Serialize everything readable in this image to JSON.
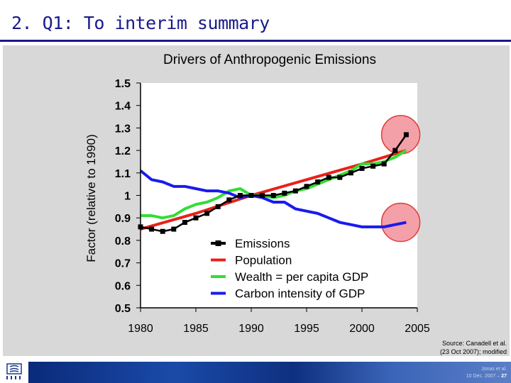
{
  "slide": {
    "title": "2. Q1: To interim summary",
    "source_line1": "Source: Canadell et al.",
    "source_line2": "(23 Oct 2007); modified",
    "credit_line1": "Jonas et al.",
    "credit_date": "10 Dec. 2007 – ",
    "credit_page": "27"
  },
  "colors": {
    "title": "#1a1a8c",
    "emissions": "#000000",
    "population": "#e8211a",
    "wealth": "#33dd33",
    "carbon": "#1a1aee",
    "highlight_circle": "#f4a0a8"
  },
  "icons": {
    "logo": "organization-logo-icon"
  },
  "chart_data": {
    "type": "line",
    "title": "Drivers of Anthropogenic Emissions",
    "xlabel": "",
    "ylabel": "Factor (relative to 1990)",
    "xlim": [
      1980,
      2005
    ],
    "ylim": [
      0.5,
      1.5
    ],
    "x_ticks": [
      "1980",
      "1985",
      "1990",
      "1995",
      "2000",
      "2005"
    ],
    "y_ticks": [
      "0.5",
      "0.6",
      "0.7",
      "0.8",
      "0.9",
      "1",
      "1.1",
      "1.2",
      "1.3",
      "1.4",
      "1.5"
    ],
    "legend_position": "lower-right",
    "highlights": [
      {
        "x": 2003.5,
        "y": 1.27
      },
      {
        "x": 2003.5,
        "y": 0.88
      }
    ],
    "series": [
      {
        "name": "Emissions",
        "color": "#000000",
        "markers": true,
        "x": [
          1980,
          1981,
          1982,
          1983,
          1984,
          1985,
          1986,
          1987,
          1988,
          1989,
          1990,
          1991,
          1992,
          1993,
          1994,
          1995,
          1996,
          1997,
          1998,
          1999,
          2000,
          2001,
          2002,
          2003,
          2004
        ],
        "y": [
          0.86,
          0.85,
          0.84,
          0.85,
          0.88,
          0.9,
          0.92,
          0.95,
          0.98,
          1.0,
          1.0,
          1.0,
          1.0,
          1.01,
          1.02,
          1.04,
          1.06,
          1.08,
          1.08,
          1.1,
          1.12,
          1.13,
          1.14,
          1.2,
          1.27
        ]
      },
      {
        "name": "Population",
        "color": "#e8211a",
        "markers": false,
        "x": [
          1980,
          1985,
          1990,
          1995,
          2000,
          2004
        ],
        "y": [
          0.85,
          0.92,
          1.0,
          1.07,
          1.14,
          1.2
        ]
      },
      {
        "name": "Wealth = per capita GDP",
        "color": "#33dd33",
        "markers": false,
        "x": [
          1980,
          1981,
          1982,
          1983,
          1984,
          1985,
          1986,
          1987,
          1988,
          1989,
          1990,
          1991,
          1992,
          1993,
          1994,
          1995,
          1996,
          1997,
          1998,
          1999,
          2000,
          2001,
          2002,
          2003,
          2004
        ],
        "y": [
          0.91,
          0.91,
          0.9,
          0.91,
          0.94,
          0.96,
          0.97,
          0.99,
          1.02,
          1.03,
          1.0,
          1.0,
          0.99,
          1.0,
          1.02,
          1.03,
          1.05,
          1.07,
          1.09,
          1.11,
          1.14,
          1.14,
          1.15,
          1.17,
          1.2
        ]
      },
      {
        "name": "Carbon intensity of GDP",
        "color": "#1a1aee",
        "markers": false,
        "x": [
          1980,
          1981,
          1982,
          1983,
          1984,
          1985,
          1986,
          1987,
          1988,
          1989,
          1990,
          1991,
          1992,
          1993,
          1994,
          1995,
          1996,
          1997,
          1998,
          1999,
          2000,
          2001,
          2002,
          2003,
          2004
        ],
        "y": [
          1.11,
          1.07,
          1.06,
          1.04,
          1.04,
          1.03,
          1.02,
          1.02,
          1.01,
          0.99,
          1.0,
          0.99,
          0.97,
          0.97,
          0.94,
          0.93,
          0.92,
          0.9,
          0.88,
          0.87,
          0.86,
          0.86,
          0.86,
          0.87,
          0.88
        ]
      }
    ]
  }
}
